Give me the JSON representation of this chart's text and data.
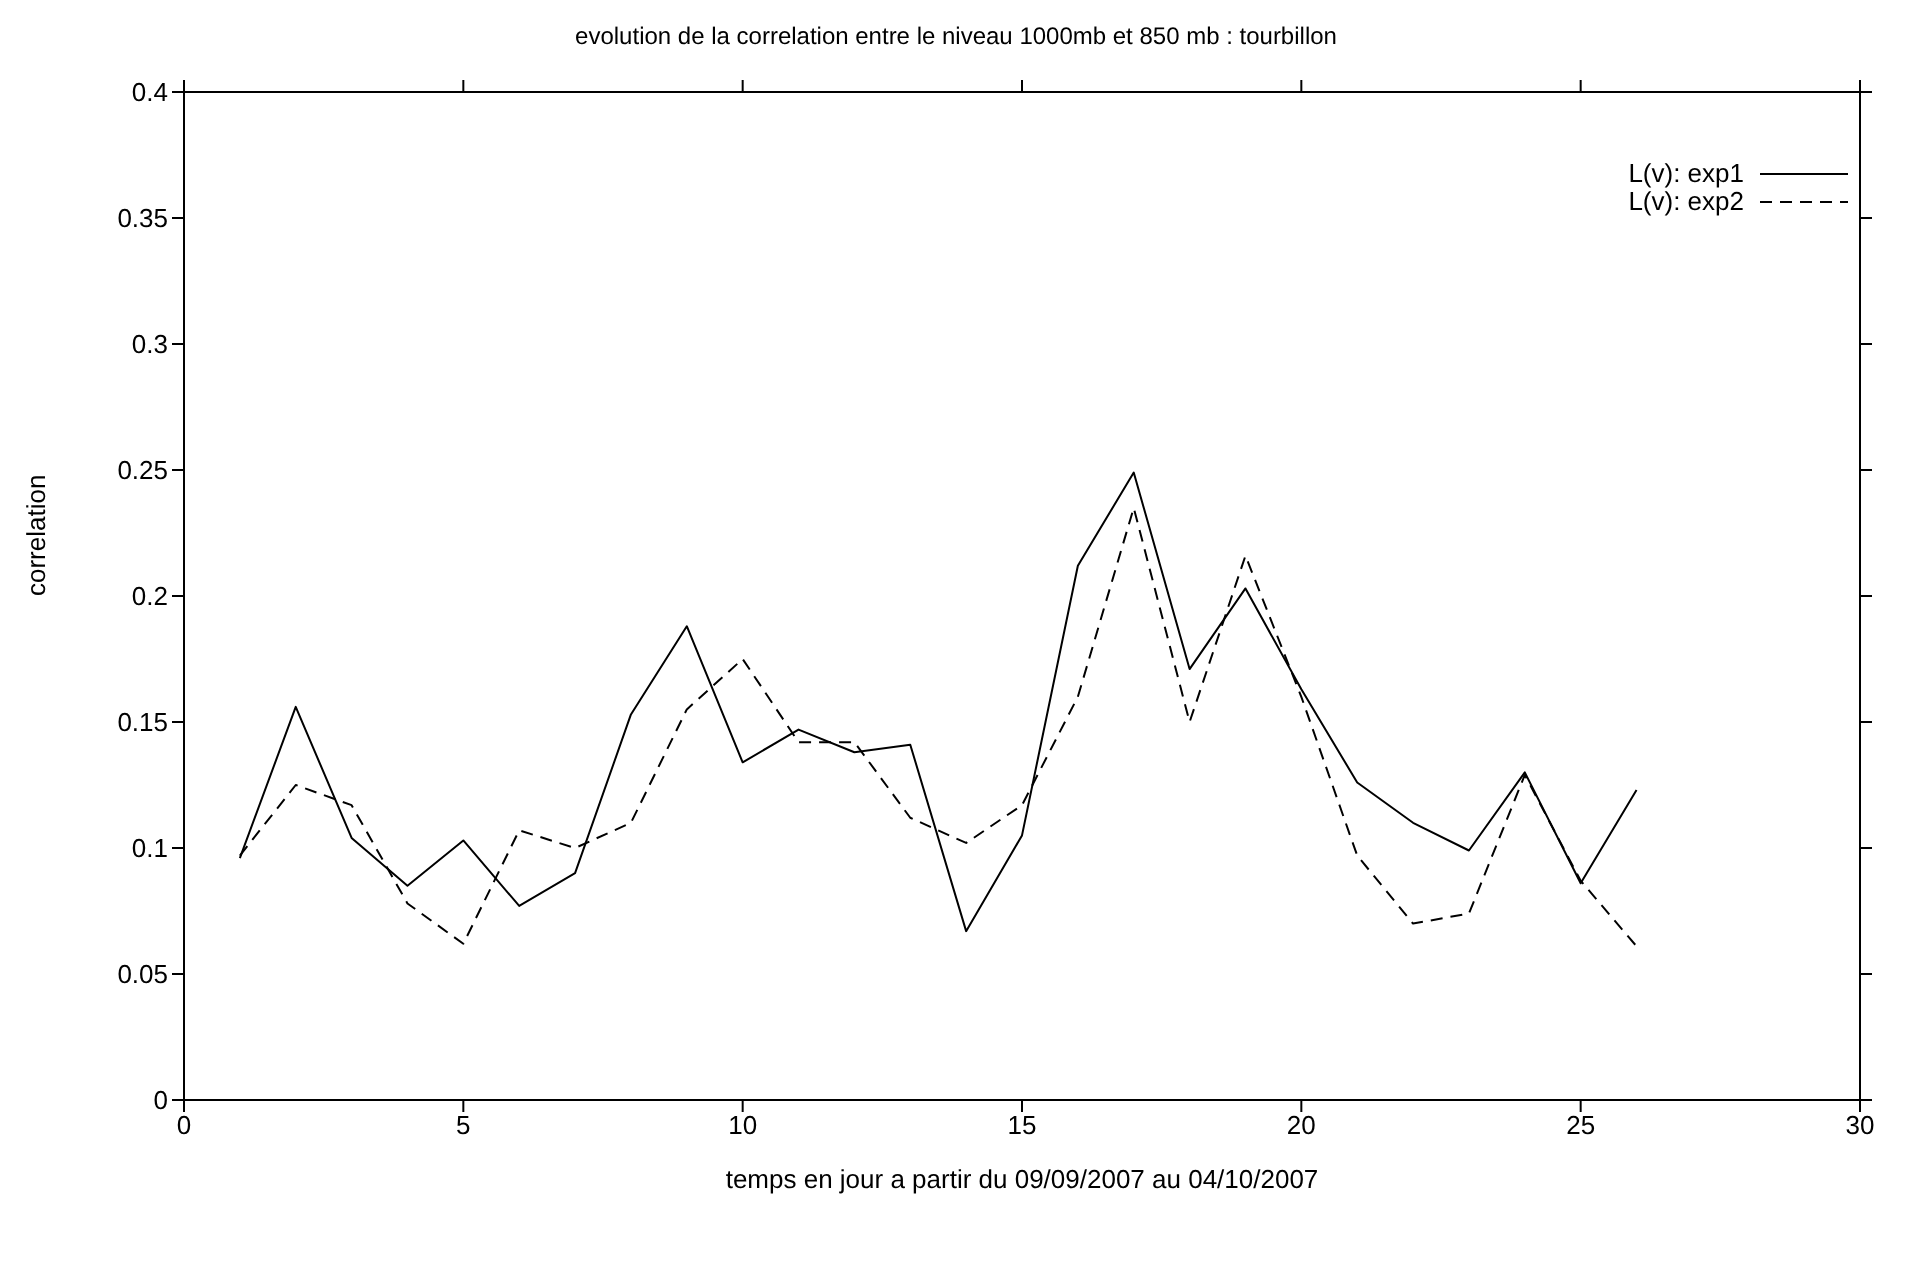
{
  "chart_data": {
    "type": "line",
    "title": "evolution de la correlation entre le niveau 1000mb et 850 mb : tourbillon",
    "xlabel": "temps en jour a partir du 09/09/2007 au 04/10/2007",
    "ylabel": "correlation",
    "x": [
      1,
      2,
      3,
      4,
      5,
      6,
      7,
      8,
      9,
      10,
      11,
      12,
      13,
      14,
      15,
      16,
      17,
      18,
      19,
      20,
      21,
      22,
      23,
      24,
      25,
      26
    ],
    "series": [
      {
        "name": "L(v): exp1",
        "color": "#000000",
        "line_style": "solid",
        "values": [
          0.096,
          0.156,
          0.104,
          0.085,
          0.103,
          0.077,
          0.09,
          0.153,
          0.188,
          0.134,
          0.147,
          0.138,
          0.141,
          0.067,
          0.105,
          0.212,
          0.249,
          0.171,
          0.203,
          0.163,
          0.126,
          0.11,
          0.099,
          0.13,
          0.086,
          0.123
        ]
      },
      {
        "name": "L(v): exp2",
        "color": "#000000",
        "line_style": "dashed",
        "values": [
          0.097,
          0.125,
          0.117,
          0.078,
          0.062,
          0.107,
          0.1,
          0.11,
          0.155,
          0.175,
          0.142,
          0.142,
          0.112,
          0.102,
          0.117,
          0.16,
          0.235,
          0.15,
          0.216,
          0.16,
          0.097,
          0.07,
          0.074,
          0.129,
          0.087,
          0.061
        ]
      }
    ],
    "xlim": [
      0,
      30
    ],
    "xticks": [
      0,
      5,
      10,
      15,
      20,
      25,
      30
    ],
    "ylim": [
      0,
      0.4
    ],
    "yticks": [
      0,
      0.05,
      0.1,
      0.15,
      0.2,
      0.25,
      0.3,
      0.35,
      0.4
    ],
    "grid": false,
    "legend": "top right",
    "marker": "none"
  }
}
